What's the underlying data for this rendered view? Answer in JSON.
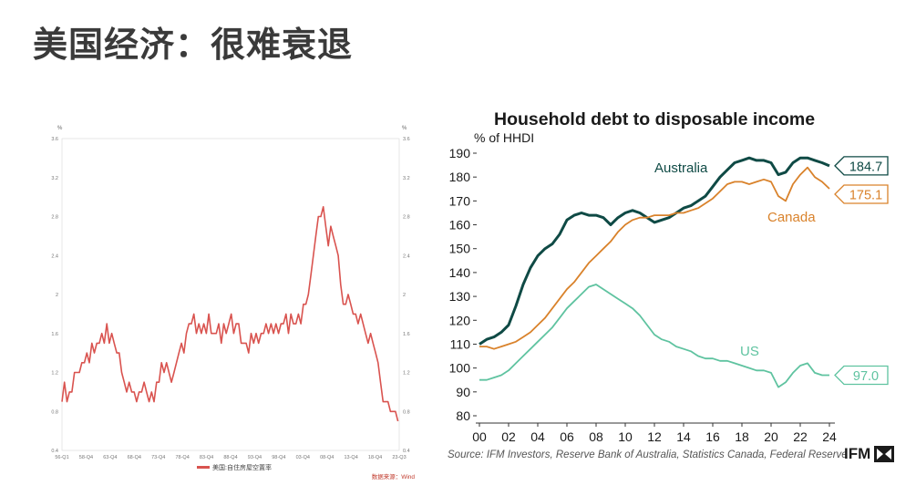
{
  "slide": {
    "title": "美国经济：很难衰退"
  },
  "chart_data": [
    {
      "type": "line",
      "ylabel_left": "%",
      "ylabel_right": "%",
      "ylim": [
        0.4,
        3.6
      ],
      "yticks": [
        "0.4",
        "0.8",
        "1.2",
        "1.6",
        "2",
        "2.4",
        "2.8",
        "3.2",
        "3.6"
      ],
      "xticks": [
        "56-Q1",
        "58-Q4",
        "63-Q4",
        "68-Q4",
        "73-Q4",
        "78-Q4",
        "83-Q4",
        "88-Q4",
        "93-Q4",
        "98-Q4",
        "03-Q4",
        "08-Q4",
        "13-Q4",
        "18-Q4",
        "23-Q3"
      ],
      "legend": "美国:自住房屋空置率",
      "source": "数据来源：Wind",
      "color": "#d9534f",
      "series": [
        {
          "name": "美国:自住房屋空置率",
          "x": [
            1956.0,
            1956.5,
            1957.0,
            1957.5,
            1958.0,
            1958.5,
            1959.0,
            1959.5,
            1960.0,
            1960.5,
            1961.0,
            1961.5,
            1962.0,
            1962.5,
            1963.0,
            1963.5,
            1964.0,
            1964.5,
            1965.0,
            1965.5,
            1966.0,
            1966.5,
            1967.0,
            1967.5,
            1968.0,
            1968.5,
            1969.0,
            1969.5,
            1970.0,
            1970.5,
            1971.0,
            1971.5,
            1972.0,
            1972.5,
            1973.0,
            1973.5,
            1974.0,
            1974.5,
            1975.0,
            1975.5,
            1976.0,
            1976.5,
            1977.0,
            1977.5,
            1978.0,
            1978.5,
            1979.0,
            1979.5,
            1980.0,
            1980.5,
            1981.0,
            1981.5,
            1982.0,
            1982.5,
            1983.0,
            1983.5,
            1984.0,
            1984.5,
            1985.0,
            1985.5,
            1986.0,
            1986.5,
            1987.0,
            1987.5,
            1988.0,
            1988.5,
            1989.0,
            1989.5,
            1990.0,
            1990.5,
            1991.0,
            1991.5,
            1992.0,
            1992.5,
            1993.0,
            1993.5,
            1994.0,
            1994.5,
            1995.0,
            1995.5,
            1996.0,
            1996.5,
            1997.0,
            1997.5,
            1998.0,
            1998.5,
            1999.0,
            1999.5,
            2000.0,
            2000.5,
            2001.0,
            2001.5,
            2002.0,
            2002.5,
            2003.0,
            2003.5,
            2004.0,
            2004.5,
            2005.0,
            2005.5,
            2006.0,
            2006.5,
            2007.0,
            2007.5,
            2008.0,
            2008.5,
            2009.0,
            2009.5,
            2010.0,
            2010.5,
            2011.0,
            2011.5,
            2012.0,
            2012.5,
            2013.0,
            2013.5,
            2014.0,
            2014.5,
            2015.0,
            2015.5,
            2016.0,
            2016.5,
            2017.0,
            2017.5,
            2018.0,
            2018.5,
            2019.0,
            2019.5,
            2020.0,
            2020.5,
            2021.0,
            2021.5,
            2022.0,
            2022.5,
            2023.0,
            2023.5
          ],
          "values": [
            0.9,
            1.1,
            0.9,
            1.0,
            1.0,
            1.2,
            1.2,
            1.2,
            1.3,
            1.3,
            1.4,
            1.3,
            1.5,
            1.4,
            1.5,
            1.5,
            1.6,
            1.5,
            1.7,
            1.5,
            1.6,
            1.5,
            1.4,
            1.4,
            1.2,
            1.1,
            1.0,
            1.1,
            1.0,
            1.0,
            0.9,
            1.0,
            1.0,
            1.1,
            1.0,
            0.9,
            1.0,
            0.9,
            1.1,
            1.1,
            1.3,
            1.2,
            1.3,
            1.2,
            1.1,
            1.2,
            1.3,
            1.4,
            1.5,
            1.4,
            1.6,
            1.7,
            1.7,
            1.8,
            1.6,
            1.7,
            1.6,
            1.7,
            1.6,
            1.8,
            1.6,
            1.6,
            1.6,
            1.7,
            1.5,
            1.7,
            1.6,
            1.7,
            1.8,
            1.6,
            1.7,
            1.7,
            1.5,
            1.5,
            1.5,
            1.4,
            1.6,
            1.5,
            1.6,
            1.5,
            1.6,
            1.6,
            1.7,
            1.6,
            1.7,
            1.6,
            1.7,
            1.6,
            1.7,
            1.7,
            1.8,
            1.6,
            1.8,
            1.7,
            1.7,
            1.8,
            1.7,
            1.9,
            1.9,
            2.0,
            2.2,
            2.4,
            2.6,
            2.8,
            2.8,
            2.9,
            2.7,
            2.5,
            2.7,
            2.6,
            2.5,
            2.4,
            2.1,
            1.9,
            1.9,
            2.0,
            1.9,
            1.8,
            1.8,
            1.7,
            1.8,
            1.7,
            1.6,
            1.5,
            1.6,
            1.5,
            1.4,
            1.3,
            1.1,
            0.9,
            0.9,
            0.9,
            0.8,
            0.8,
            0.8,
            0.7
          ]
        }
      ]
    },
    {
      "type": "line",
      "title": "Household debt to disposable income",
      "ylabel": "% of HHDI",
      "ylim": [
        80,
        190
      ],
      "yticks": [
        80,
        90,
        100,
        110,
        120,
        130,
        140,
        150,
        160,
        170,
        180,
        190
      ],
      "xlim": [
        2000,
        2024
      ],
      "xticks": [
        "00",
        "02",
        "04",
        "06",
        "08",
        "10",
        "12",
        "14",
        "16",
        "18",
        "20",
        "22",
        "24"
      ],
      "source": "Source: IFM Investors, Reserve Bank of Australia, Statistics Canada, Federal Reserve",
      "logo": "IFM",
      "series": [
        {
          "name": "Australia",
          "end_label": "184.7",
          "color": "#0f4a45",
          "x": [
            2000,
            2000.5,
            2001,
            2001.5,
            2002,
            2002.5,
            2003,
            2003.5,
            2004,
            2004.5,
            2005,
            2005.5,
            2006,
            2006.5,
            2007,
            2007.5,
            2008,
            2008.5,
            2009,
            2009.5,
            2010,
            2010.5,
            2011,
            2011.5,
            2012,
            2012.5,
            2013,
            2013.5,
            2014,
            2014.5,
            2015,
            2015.5,
            2016,
            2016.5,
            2017,
            2017.5,
            2018,
            2018.5,
            2019,
            2019.5,
            2020,
            2020.5,
            2021,
            2021.5,
            2022,
            2022.5,
            2023,
            2023.5,
            2024
          ],
          "values": [
            110,
            112,
            113,
            115,
            118,
            126,
            135,
            142,
            147,
            150,
            152,
            156,
            162,
            164,
            165,
            164,
            164,
            163,
            160,
            163,
            165,
            166,
            165,
            163,
            161,
            162,
            163,
            165,
            167,
            168,
            170,
            172,
            176,
            180,
            183,
            186,
            187,
            188,
            187,
            187,
            186,
            181,
            182,
            186,
            188,
            188,
            187,
            186,
            184.7
          ]
        },
        {
          "name": "Canada",
          "end_label": "175.1",
          "color": "#d9822b",
          "x": [
            2000,
            2000.5,
            2001,
            2001.5,
            2002,
            2002.5,
            2003,
            2003.5,
            2004,
            2004.5,
            2005,
            2005.5,
            2006,
            2006.5,
            2007,
            2007.5,
            2008,
            2008.5,
            2009,
            2009.5,
            2010,
            2010.5,
            2011,
            2011.5,
            2012,
            2012.5,
            2013,
            2013.5,
            2014,
            2014.5,
            2015,
            2015.5,
            2016,
            2016.5,
            2017,
            2017.5,
            2018,
            2018.5,
            2019,
            2019.5,
            2020,
            2020.5,
            2021,
            2021.5,
            2022,
            2022.5,
            2023,
            2023.5,
            2024
          ],
          "values": [
            109,
            109,
            108,
            109,
            110,
            111,
            113,
            115,
            118,
            121,
            125,
            129,
            133,
            136,
            140,
            144,
            147,
            150,
            153,
            157,
            160,
            162,
            163,
            163,
            164,
            164,
            164,
            165,
            165,
            166,
            167,
            169,
            171,
            174,
            177,
            178,
            178,
            177,
            178,
            179,
            178,
            172,
            170,
            177,
            181,
            184,
            180,
            178,
            175.1
          ]
        },
        {
          "name": "US",
          "end_label": "97.0",
          "color": "#5fc3a0",
          "x": [
            2000,
            2000.5,
            2001,
            2001.5,
            2002,
            2002.5,
            2003,
            2003.5,
            2004,
            2004.5,
            2005,
            2005.5,
            2006,
            2006.5,
            2007,
            2007.5,
            2008,
            2008.5,
            2009,
            2009.5,
            2010,
            2010.5,
            2011,
            2011.5,
            2012,
            2012.5,
            2013,
            2013.5,
            2014,
            2014.5,
            2015,
            2015.5,
            2016,
            2016.5,
            2017,
            2017.5,
            2018,
            2018.5,
            2019,
            2019.5,
            2020,
            2020.5,
            2021,
            2021.5,
            2022,
            2022.5,
            2023,
            2023.5,
            2024
          ],
          "values": [
            95,
            95,
            96,
            97,
            99,
            102,
            105,
            108,
            111,
            114,
            117,
            121,
            125,
            128,
            131,
            134,
            135,
            133,
            131,
            129,
            127,
            125,
            122,
            118,
            114,
            112,
            111,
            109,
            108,
            107,
            105,
            104,
            104,
            103,
            103,
            102,
            101,
            100,
            99,
            99,
            98,
            92,
            94,
            98,
            101,
            102,
            98,
            97,
            97.0
          ]
        }
      ]
    }
  ]
}
